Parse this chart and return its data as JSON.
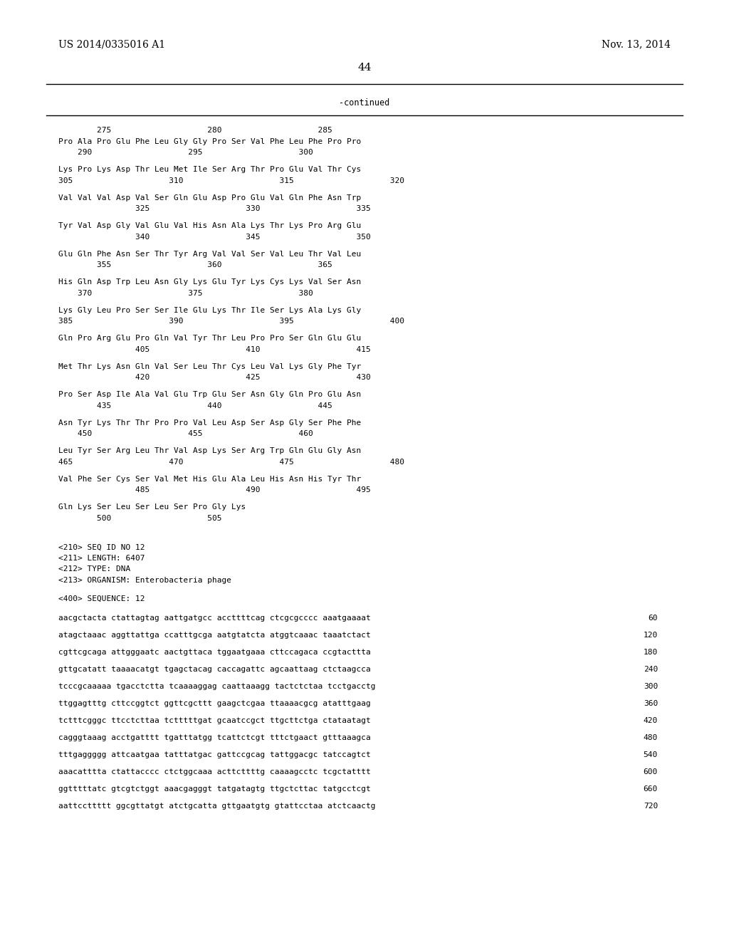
{
  "header_left": "US 2014/0335016 A1",
  "header_right": "Nov. 13, 2014",
  "page_number": "44",
  "continued_label": "-continued",
  "background_color": "#ffffff",
  "text_color": "#000000",
  "figsize": [
    10.24,
    13.2
  ],
  "dpi": 100,
  "content_lines": [
    "        275                    280                    285",
    "Pro Ala Pro Glu Phe Leu Gly Gly Pro Ser Val Phe Leu Phe Pro Pro",
    "    290                    295                    300",
    "",
    "Lys Pro Lys Asp Thr Leu Met Ile Ser Arg Thr Pro Glu Val Thr Cys",
    "305                    310                    315                    320",
    "",
    "Val Val Val Asp Val Ser Gln Glu Asp Pro Glu Val Gln Phe Asn Trp",
    "                325                    330                    335",
    "",
    "Tyr Val Asp Gly Val Glu Val His Asn Ala Lys Thr Lys Pro Arg Glu",
    "                340                    345                    350",
    "",
    "Glu Gln Phe Asn Ser Thr Tyr Arg Val Val Ser Val Leu Thr Val Leu",
    "        355                    360                    365",
    "",
    "His Gln Asp Trp Leu Asn Gly Lys Glu Tyr Lys Cys Lys Val Ser Asn",
    "    370                    375                    380",
    "",
    "Lys Gly Leu Pro Ser Ser Ile Glu Lys Thr Ile Ser Lys Ala Lys Gly",
    "385                    390                    395                    400",
    "",
    "Gln Pro Arg Glu Pro Gln Val Tyr Thr Leu Pro Pro Ser Gln Glu Glu",
    "                405                    410                    415",
    "",
    "Met Thr Lys Asn Gln Val Ser Leu Thr Cys Leu Val Lys Gly Phe Tyr",
    "                420                    425                    430",
    "",
    "Pro Ser Asp Ile Ala Val Glu Trp Glu Ser Asn Gly Gln Pro Glu Asn",
    "        435                    440                    445",
    "",
    "Asn Tyr Lys Thr Thr Pro Pro Val Leu Asp Ser Asp Gly Ser Phe Phe",
    "    450                    455                    460",
    "",
    "Leu Tyr Ser Arg Leu Thr Val Asp Lys Ser Arg Trp Gln Glu Gly Asn",
    "465                    470                    475                    480",
    "",
    "Val Phe Ser Cys Ser Val Met His Glu Ala Leu His Asn His Tyr Thr",
    "                485                    490                    495",
    "",
    "Gln Lys Ser Leu Ser Leu Ser Pro Gly Lys",
    "        500                    505"
  ],
  "seq_info_lines": [
    "<210> SEQ ID NO 12",
    "<211> LENGTH: 6407",
    "<212> TYPE: DNA",
    "<213> ORGANISM: Enterobacteria phage"
  ],
  "seq400_line": "<400> SEQUENCE: 12",
  "dna_lines": [
    {
      "text": "aacgctacta ctattagtag aattgatgcc accttttcag ctcgcgcccc aaatgaaaat",
      "num": "60"
    },
    {
      "text": "atagctaaac aggttattga ccatttgcga aatgtatcta atggtcaaac taaatctact",
      "num": "120"
    },
    {
      "text": "cgttcgcaga attgggaatc aactgttaca tggaatgaaa cttccagaca ccgtacttta",
      "num": "180"
    },
    {
      "text": "gttgcatatt taaaacatgt tgagctacag caccagattc agcaattaag ctctaagcca",
      "num": "240"
    },
    {
      "text": "tcccgcaaaaa tgacctctta tcaaaaggag caattaaagg tactctctaa tcctgacctg",
      "num": "300"
    },
    {
      "text": "ttggagtttg cttccggtct ggttcgcttt gaagctcgaa ttaaaacgcg atatttgaag",
      "num": "360"
    },
    {
      "text": "tctttcgggc ttcctcttaa tctttttgat gcaatccgct ttgcttctga ctataatagt",
      "num": "420"
    },
    {
      "text": "cagggtaaag acctgatttt tgatttatgg tcattctcgt tttctgaact gtttaaagca",
      "num": "480"
    },
    {
      "text": "tttgaggggg attcaatgaa tatttatgac gattccgcag tattggacgc tatccagtct",
      "num": "540"
    },
    {
      "text": "aaacatttta ctattacccc ctctggcaaa acttcttttg caaaagcctc tcgctatttt",
      "num": "600"
    },
    {
      "text": "ggtttttatc gtcgtctggt aaacgagggt tatgatagtg ttgctcttac tatgcctcgt",
      "num": "660"
    },
    {
      "text": "aattccttttt ggcgttatgt atctgcatta gttgaatgtg gtattcctaa atctcaactg",
      "num": "720"
    }
  ]
}
